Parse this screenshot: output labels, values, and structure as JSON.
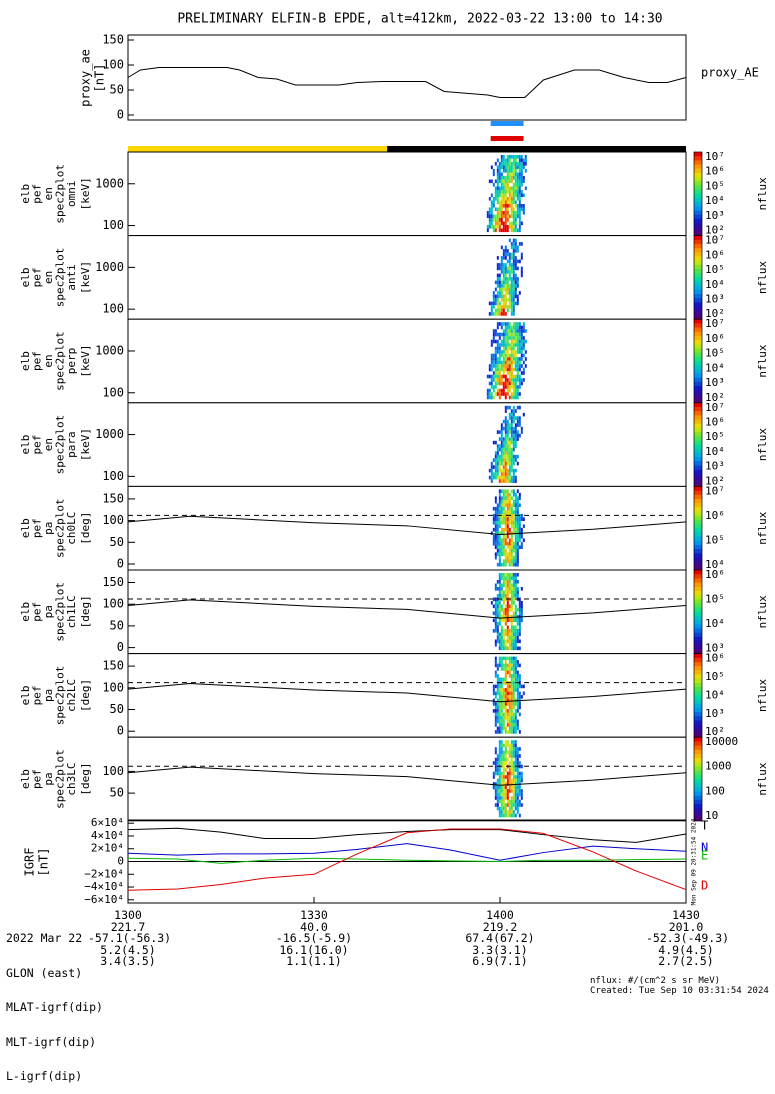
{
  "title": "PRELIMINARY ELFIN-B EPDE, alt=412km, 2022-03-22 13:00 to 14:30",
  "chart_data": {
    "type": "line",
    "time_range": [
      "2022-03-22 13:00",
      "2022-03-22 14:30"
    ],
    "time_ticks": [
      "1300",
      "1330",
      "1400",
      "1430"
    ],
    "time_tick_minutes": [
      0,
      30,
      60,
      90
    ],
    "proxy_ae": {
      "ylabel": "proxy_ae",
      "units": "[nT]",
      "legend": "proxy_AE",
      "ylim": [
        -10,
        160
      ],
      "yticks": [
        "150",
        "100",
        "50",
        "0"
      ],
      "ytick_values": [
        150,
        100,
        50,
        0
      ],
      "x": [
        0,
        2,
        5,
        10,
        16,
        18,
        21,
        24,
        27,
        30,
        34,
        37,
        41,
        44,
        48,
        51,
        55,
        58,
        60,
        62,
        64,
        67,
        72,
        76,
        80,
        84,
        87,
        90
      ],
      "values": [
        75,
        90,
        95,
        95,
        95,
        90,
        75,
        72,
        60,
        60,
        60,
        65,
        67,
        67,
        67,
        47,
        43,
        40,
        35,
        35,
        35,
        70,
        90,
        90,
        75,
        65,
        65,
        75
      ]
    },
    "orbit_bars": [
      {
        "color": "#ffd700",
        "from": 0,
        "to": 41.8
      },
      {
        "color": "#000000",
        "from": 41.8,
        "to": 90
      }
    ],
    "science_zone_markers": [
      {
        "color": "#1e90ff",
        "from": 58.5,
        "to": 63.8
      },
      {
        "color": "#e00000",
        "from": 58.5,
        "to": 63.8
      }
    ],
    "energy_panels": [
      {
        "lines": [
          "elb",
          "pef",
          "en",
          "spec2plot",
          "omni"
        ],
        "units": "[keV]",
        "yticks": [
          "1000",
          "100"
        ],
        "cbar_ticks": [
          "10^7",
          "10^6",
          "10^5",
          "10^4",
          "10^3",
          "10^2"
        ],
        "cbar_label": "nflux"
      },
      {
        "lines": [
          "elb",
          "pef",
          "en",
          "spec2plot",
          "anti"
        ],
        "units": "[keV]",
        "yticks": [
          "1000",
          "100"
        ],
        "cbar_ticks": [
          "10^7",
          "10^6",
          "10^5",
          "10^4",
          "10^3",
          "10^2"
        ],
        "cbar_label": "nflux"
      },
      {
        "lines": [
          "elb",
          "pef",
          "en",
          "spec2plot",
          "perp"
        ],
        "units": "[keV]",
        "yticks": [
          "1000",
          "100"
        ],
        "cbar_ticks": [
          "10^7",
          "10^6",
          "10^5",
          "10^4",
          "10^3",
          "10^2"
        ],
        "cbar_label": "nflux"
      },
      {
        "lines": [
          "elb",
          "pef",
          "en",
          "spec2plot",
          "para"
        ],
        "units": "[keV]",
        "yticks": [
          "1000",
          "100"
        ],
        "cbar_ticks": [
          "10^7",
          "10^6",
          "10^5",
          "10^4",
          "10^3",
          "10^2"
        ],
        "cbar_label": "nflux"
      }
    ],
    "pitch_panels": [
      {
        "lines": [
          "elb",
          "pef",
          "pa",
          "spec2plot",
          "ch0LC"
        ],
        "units": "[deg]",
        "yticks": [
          "150",
          "100",
          "50",
          "0"
        ],
        "cbar_ticks": [
          "10^7",
          "10^6",
          "10^5",
          "10^4"
        ],
        "cbar_label": "nflux"
      },
      {
        "lines": [
          "elb",
          "pef",
          "pa",
          "spec2plot",
          "ch1LC"
        ],
        "units": "[deg]",
        "yticks": [
          "150",
          "100",
          "50",
          "0"
        ],
        "cbar_ticks": [
          "10^6",
          "10^5",
          "10^4",
          "10^3"
        ],
        "cbar_label": "nflux"
      },
      {
        "lines": [
          "elb",
          "pef",
          "pa",
          "spec2plot",
          "ch2LC"
        ],
        "units": "[deg]",
        "yticks": [
          "150",
          "100",
          "50",
          "0"
        ],
        "cbar_ticks": [
          "10^6",
          "10^5",
          "10^4",
          "10^3",
          "10^2"
        ],
        "cbar_label": "nflux"
      },
      {
        "lines": [
          "elb",
          "pef",
          "pa",
          "spec2plot",
          "ch3LC"
        ],
        "units": "[deg]",
        "yticks": [
          "100",
          "50"
        ],
        "cbar_ticks": [
          "10000",
          "1000",
          "100",
          "10"
        ],
        "cbar_label": "nflux"
      }
    ],
    "igrf": {
      "ylabel": "IGRF",
      "units": "[nT]",
      "yticks": [
        "6×10⁴",
        "4×10⁴",
        "2×10⁴",
        "0",
        "−2×10⁴",
        "−4×10⁴",
        "−6×10⁴"
      ],
      "ytick_values": [
        60000,
        40000,
        20000,
        0,
        -20000,
        -40000,
        -60000
      ],
      "ylim": [
        -65000,
        65000
      ],
      "x": [
        0,
        8,
        15,
        22,
        30,
        37,
        45,
        52,
        60,
        67,
        75,
        82,
        90
      ],
      "series": [
        {
          "name": "T",
          "color": "#000000",
          "values": [
            50000,
            52000,
            46000,
            36000,
            36000,
            42000,
            47000,
            50000,
            50000,
            42000,
            34000,
            30000,
            43000
          ]
        },
        {
          "name": "N",
          "color": "#0000cc",
          "values": [
            13000,
            10000,
            12000,
            12000,
            13000,
            19000,
            28000,
            18000,
            2000,
            14000,
            24000,
            20000,
            16000
          ]
        },
        {
          "name": "E",
          "color": "#00bb00",
          "values": [
            5000,
            4000,
            -3000,
            2000,
            5000,
            4000,
            2000,
            1000,
            0,
            2000,
            2000,
            3000,
            4000
          ]
        },
        {
          "name": "D",
          "color": "#dd0000",
          "values": [
            -45000,
            -43000,
            -36000,
            -26000,
            -20000,
            12000,
            45000,
            51000,
            51000,
            44000,
            15000,
            -15000,
            -44000
          ]
        }
      ]
    }
  },
  "footer": {
    "rows": [
      {
        "label": "2022 Mar 22",
        "values": [
          "1300",
          "1330",
          "1400",
          "1430"
        ]
      },
      {
        "label": "GLON (east)",
        "values": [
          "221.7",
          "40.0",
          "219.2",
          "201.0"
        ]
      },
      {
        "label": "MLAT-igrf(dip)",
        "values": [
          "-57.1(-56.3)",
          "-16.5(-5.9)",
          "67.4(67.2)",
          "-52.3(-49.3)"
        ]
      },
      {
        "label": "MLT-igrf(dip)",
        "values": [
          "5.2(4.5)",
          "16.1(16.0)",
          "3.3(3.1)",
          "4.9(4.5)"
        ]
      },
      {
        "label": "L-igrf(dip)",
        "values": [
          "3.4(3.5)",
          "1.1(1.1)",
          "6.9(7.1)",
          "2.7(2.5)"
        ]
      }
    ],
    "nflux_units": "nflux: #/(cm^2 s sr MeV)",
    "created": "Created: Tue Sep 10 03:31:54 2024",
    "side_stamp": "Mon Sep 09 20:31:54 2024"
  }
}
